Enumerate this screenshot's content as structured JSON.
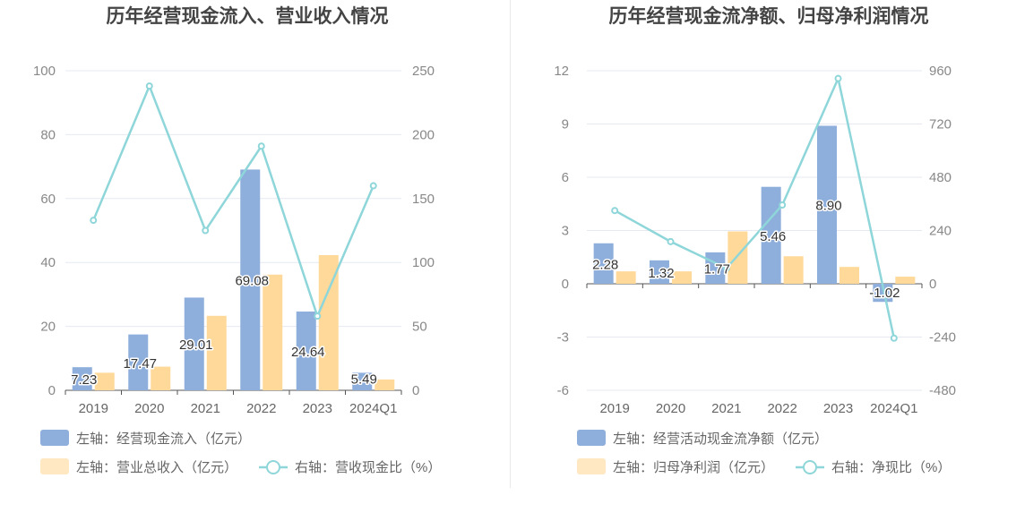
{
  "colors": {
    "left_bar": "#8eaedc",
    "right_bar": "#ffd99a",
    "line": "#8ed6d9",
    "grid": "#e6e9f2",
    "axis": "#555555"
  },
  "chart_data": [
    {
      "type": "bar+line",
      "title": "历年经营现金流入、营业收入情况",
      "categories": [
        "2019",
        "2020",
        "2021",
        "2022",
        "2023",
        "2024Q1"
      ],
      "left_axis": {
        "min": 0,
        "max": 100,
        "ticks": [
          "0",
          "20",
          "40",
          "60",
          "80",
          "100"
        ]
      },
      "right_axis": {
        "min": 0,
        "max": 250,
        "ticks": [
          "0",
          "50",
          "100",
          "150",
          "200",
          "250"
        ]
      },
      "series": [
        {
          "name": "左轴：经营现金流入（亿元）",
          "axis": "left",
          "kind": "bar",
          "values": [
            7.23,
            17.47,
            29.01,
            69.08,
            24.64,
            5.49
          ],
          "labels": [
            "7.23",
            "17.47",
            "29.01",
            "69.08",
            "24.64",
            "5.49"
          ]
        },
        {
          "name": "左轴：营业总收入（亿元）",
          "axis": "left",
          "kind": "bar",
          "values": [
            5.5,
            7.4,
            23.3,
            36.2,
            42.3,
            3.4
          ]
        },
        {
          "name": "右轴：营收现金比（%）",
          "axis": "right",
          "kind": "line",
          "values": [
            133,
            238,
            125,
            191,
            58,
            160
          ]
        }
      ],
      "grid": true,
      "legend_position": "bottom-left"
    },
    {
      "type": "bar+line",
      "title": "历年经营现金流净额、归母净利润情况",
      "categories": [
        "2019",
        "2020",
        "2021",
        "2022",
        "2023",
        "2024Q1"
      ],
      "left_axis": {
        "min": -6,
        "max": 12,
        "ticks": [
          "-6",
          "-3",
          "0",
          "3",
          "6",
          "9",
          "12"
        ]
      },
      "right_axis": {
        "min": -480,
        "max": 960,
        "ticks": [
          "-480",
          "-240",
          "0",
          "240",
          "480",
          "720",
          "960"
        ]
      },
      "series": [
        {
          "name": "左轴：经营活动现金流净额（亿元）",
          "axis": "left",
          "kind": "bar",
          "values": [
            2.28,
            1.32,
            1.77,
            5.46,
            8.9,
            -1.02
          ],
          "labels": [
            "2.28",
            "1.32",
            "1.77",
            "5.46",
            "8.90",
            "-1.02"
          ]
        },
        {
          "name": "左轴：归母净利润（亿元）",
          "axis": "left",
          "kind": "bar",
          "values": [
            0.7,
            0.7,
            2.95,
            1.55,
            0.95,
            0.4
          ]
        },
        {
          "name": "右轴：净现比（%）",
          "axis": "right",
          "kind": "line",
          "values": [
            330,
            190,
            70,
            355,
            925,
            -245
          ]
        }
      ],
      "grid": true,
      "legend_position": "bottom-left"
    }
  ]
}
